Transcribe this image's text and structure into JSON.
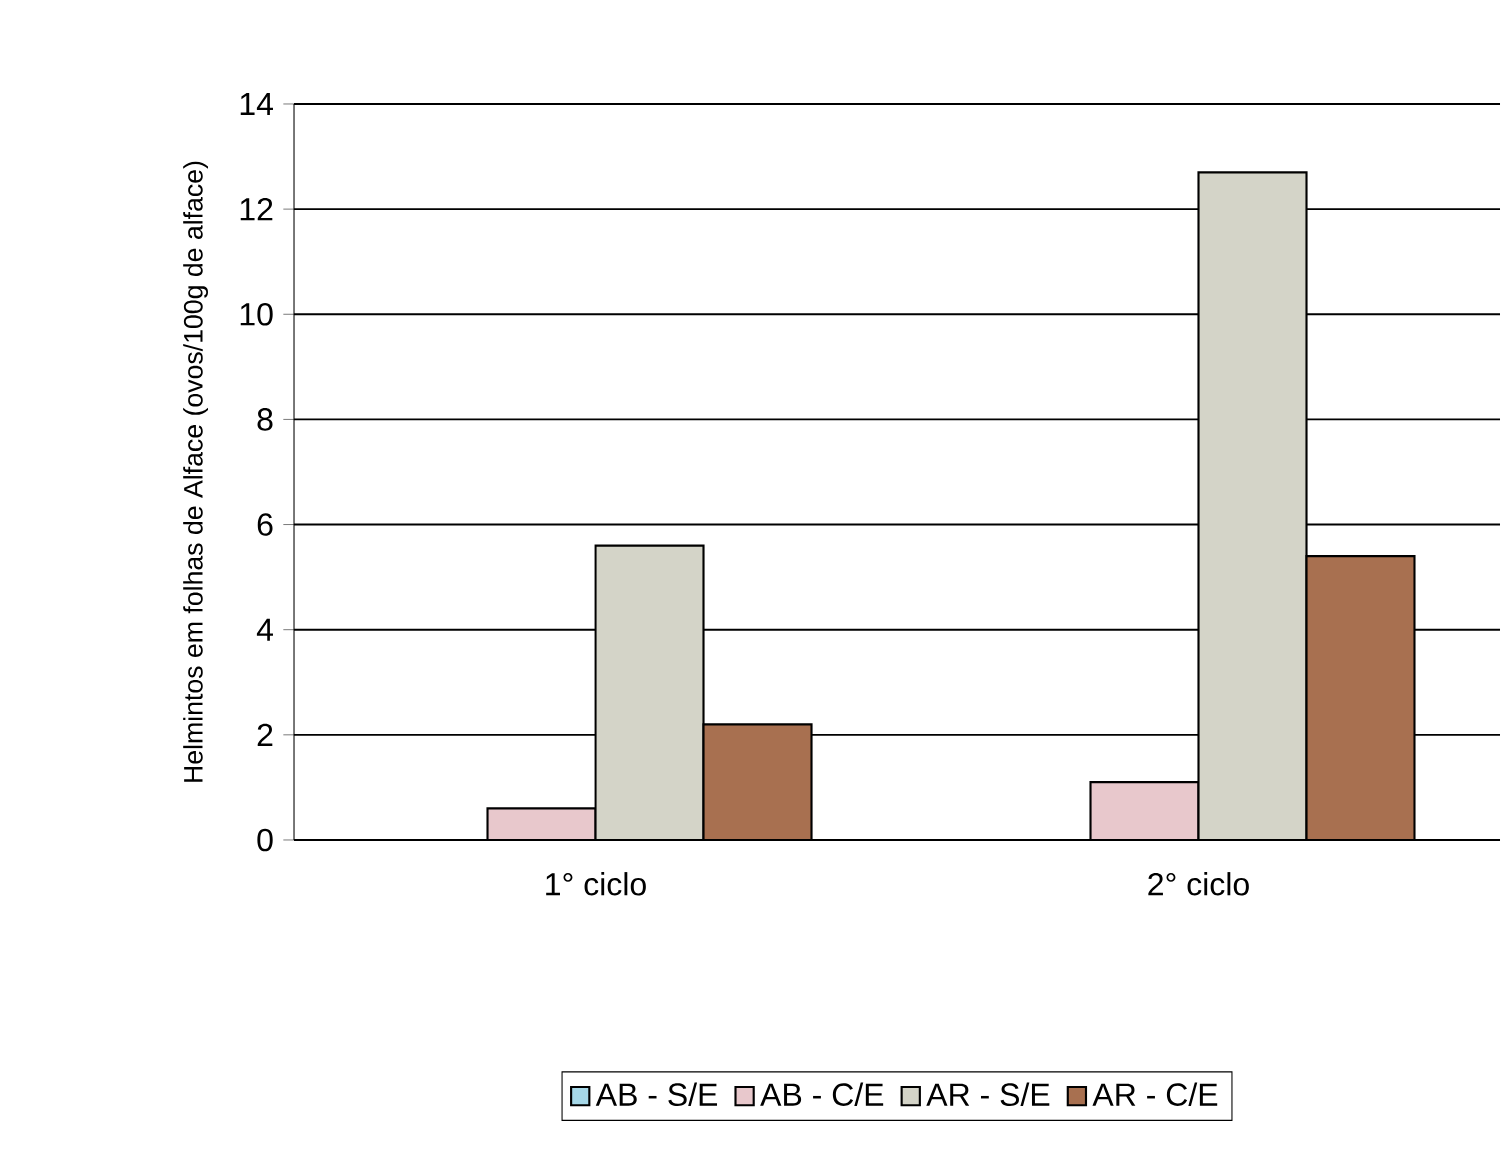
{
  "chart_data": {
    "type": "bar",
    "ylabel": "Helmintos em folhas de Alface (ovos/100g de alface)",
    "categories": [
      "1° ciclo",
      "2° ciclo"
    ],
    "series": [
      {
        "name": "AB - S/E",
        "color": "#a6d8e8",
        "values": [
          0,
          0
        ]
      },
      {
        "name": "AB - C/E",
        "color": "#e8c8cc",
        "values": [
          0.6,
          1.1
        ]
      },
      {
        "name": "AR - S/E",
        "color": "#d4d4c8",
        "values": [
          5.6,
          12.7
        ]
      },
      {
        "name": "AR - C/E",
        "color": "#a87050",
        "values": [
          2.2,
          5.4
        ]
      }
    ],
    "ylim": [
      0,
      14
    ],
    "yticks": [
      0,
      2,
      4,
      6,
      8,
      10,
      12,
      14
    ],
    "grid": "y",
    "legend": "bottom"
  }
}
